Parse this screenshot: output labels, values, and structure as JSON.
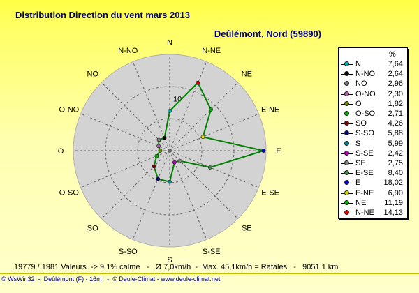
{
  "title": "Distribution Direction du vent   mars 2013",
  "subtitle": "Deûlémont, Nord (59890)",
  "chart_data": {
    "type": "radar",
    "radial_ticks": [
      {
        "value": 10,
        "label": "10"
      }
    ],
    "radial_max": 18.5,
    "directions": [
      "N",
      "N-NE",
      "NE",
      "E-NE",
      "E",
      "E-SE",
      "SE",
      "S-SE",
      "S",
      "S-SO",
      "SO",
      "O-SO",
      "O",
      "O-NO",
      "NO",
      "N-NO"
    ],
    "values": [
      7.64,
      14.13,
      11.19,
      6.9,
      18.02,
      8.4,
      2.75,
      2.42,
      5.99,
      5.88,
      4.26,
      2.71,
      1.82,
      2.3,
      2.96,
      2.64
    ],
    "line_color": "#008000",
    "grid": true
  },
  "legend": {
    "header": "%",
    "items": [
      {
        "name": "N",
        "value": "7,64",
        "color": "#00aaaa"
      },
      {
        "name": "N-NO",
        "value": "2,64",
        "color": "#000000"
      },
      {
        "name": "NO",
        "value": "2,96",
        "color": "#777777"
      },
      {
        "name": "O-NO",
        "value": "2,30",
        "color": "#aa66aa"
      },
      {
        "name": "O",
        "value": "1,82",
        "color": "#668800"
      },
      {
        "name": "O-SO",
        "value": "2,71",
        "color": "#00aa00"
      },
      {
        "name": "SO",
        "value": "4,26",
        "color": "#880000"
      },
      {
        "name": "S-SO",
        "value": "5,88",
        "color": "#000080"
      },
      {
        "name": "S",
        "value": "5,99",
        "color": "#008888"
      },
      {
        "name": "S-SE",
        "value": "2,42",
        "color": "#bb00bb"
      },
      {
        "name": "SE",
        "value": "2,75",
        "color": "#888888"
      },
      {
        "name": "E-SE",
        "value": "8,40",
        "color": "#448844"
      },
      {
        "name": "E",
        "value": "18,02",
        "color": "#0000cc"
      },
      {
        "name": "E-NE",
        "value": "6,90",
        "color": "#dddd00"
      },
      {
        "name": "NE",
        "value": "11,19",
        "color": "#00aa00"
      },
      {
        "name": "N-NE",
        "value": "14,13",
        "color": "#dd0000"
      }
    ]
  },
  "footer": {
    "stats": "19779 / 1981 Valeurs  -> 9.1% calme   -   Ø 7,0km/h  -  Max. 45,1km/h = Rafales   -   9051.1 km",
    "credits": "© WsWin32  -  Deûlémont (F) - 16m   -  © Deule-Climat - www.deule-climat.net"
  }
}
